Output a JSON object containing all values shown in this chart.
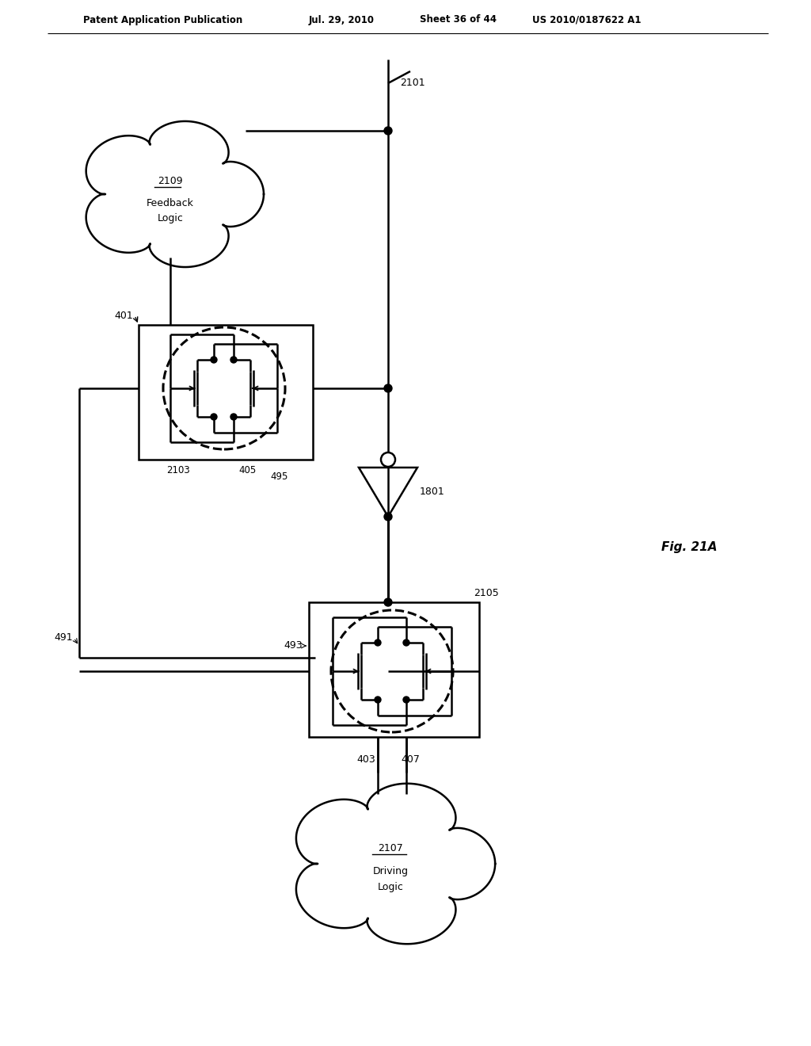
{
  "bg": "#ffffff",
  "lc": "#000000",
  "header1": "Patent Application Publication",
  "header2": "Jul. 29, 2010",
  "header3": "Sheet 36 of 44",
  "header4": "US 2010/0187622 A1",
  "fig_label": "Fig. 21A",
  "label_2109": "2109",
  "label_feedback": "Feedback",
  "label_logic_fb": "Logic",
  "label_2107": "2107",
  "label_driving": "Driving",
  "label_logic_dr": "Logic",
  "label_401": "401",
  "label_2103": "2103",
  "label_405": "405",
  "label_495": "495",
  "label_491": "491",
  "label_493": "493",
  "label_2105": "2105",
  "label_403": "403",
  "label_407": "407",
  "label_2101": "2101",
  "label_1801": "1801"
}
